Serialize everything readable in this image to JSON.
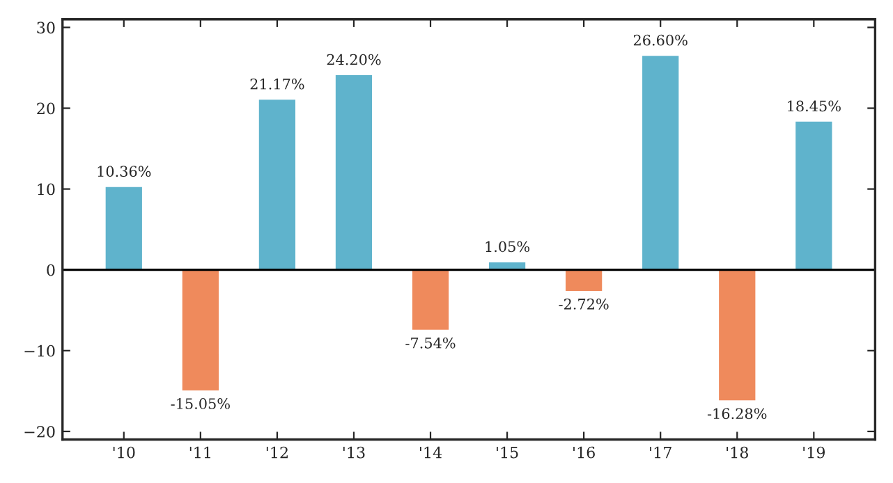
{
  "chart_data": {
    "type": "bar",
    "categories": [
      "'10",
      "'11",
      "'12",
      "'13",
      "'14",
      "'15",
      "'16",
      "'17",
      "'18",
      "'19"
    ],
    "values": [
      10.36,
      -15.05,
      21.17,
      24.2,
      -7.54,
      1.05,
      -2.72,
      26.6,
      -16.28,
      18.45
    ],
    "value_labels": [
      "10.36%",
      "-15.05%",
      "21.17%",
      "24.20%",
      "-7.54%",
      "1.05%",
      "-2.72%",
      "26.60%",
      "-16.28%",
      "18.45%"
    ],
    "colors": [
      "#5fb3cc",
      "#ef8a5c",
      "#5fb3cc",
      "#5fb3cc",
      "#ef8a5c",
      "#5fb3cc",
      "#ef8a5c",
      "#5fb3cc",
      "#ef8a5c",
      "#5fb3cc"
    ],
    "ylim": [
      -21,
      31
    ],
    "yticks": [
      {
        "value": -20,
        "label": "−20"
      },
      {
        "value": -10,
        "label": "−10"
      },
      0,
      10,
      20,
      30
    ],
    "ref_lines": [
      {
        "axis": "y",
        "value": 0,
        "color": "#000000"
      }
    ],
    "grid": false,
    "legend": false
  }
}
